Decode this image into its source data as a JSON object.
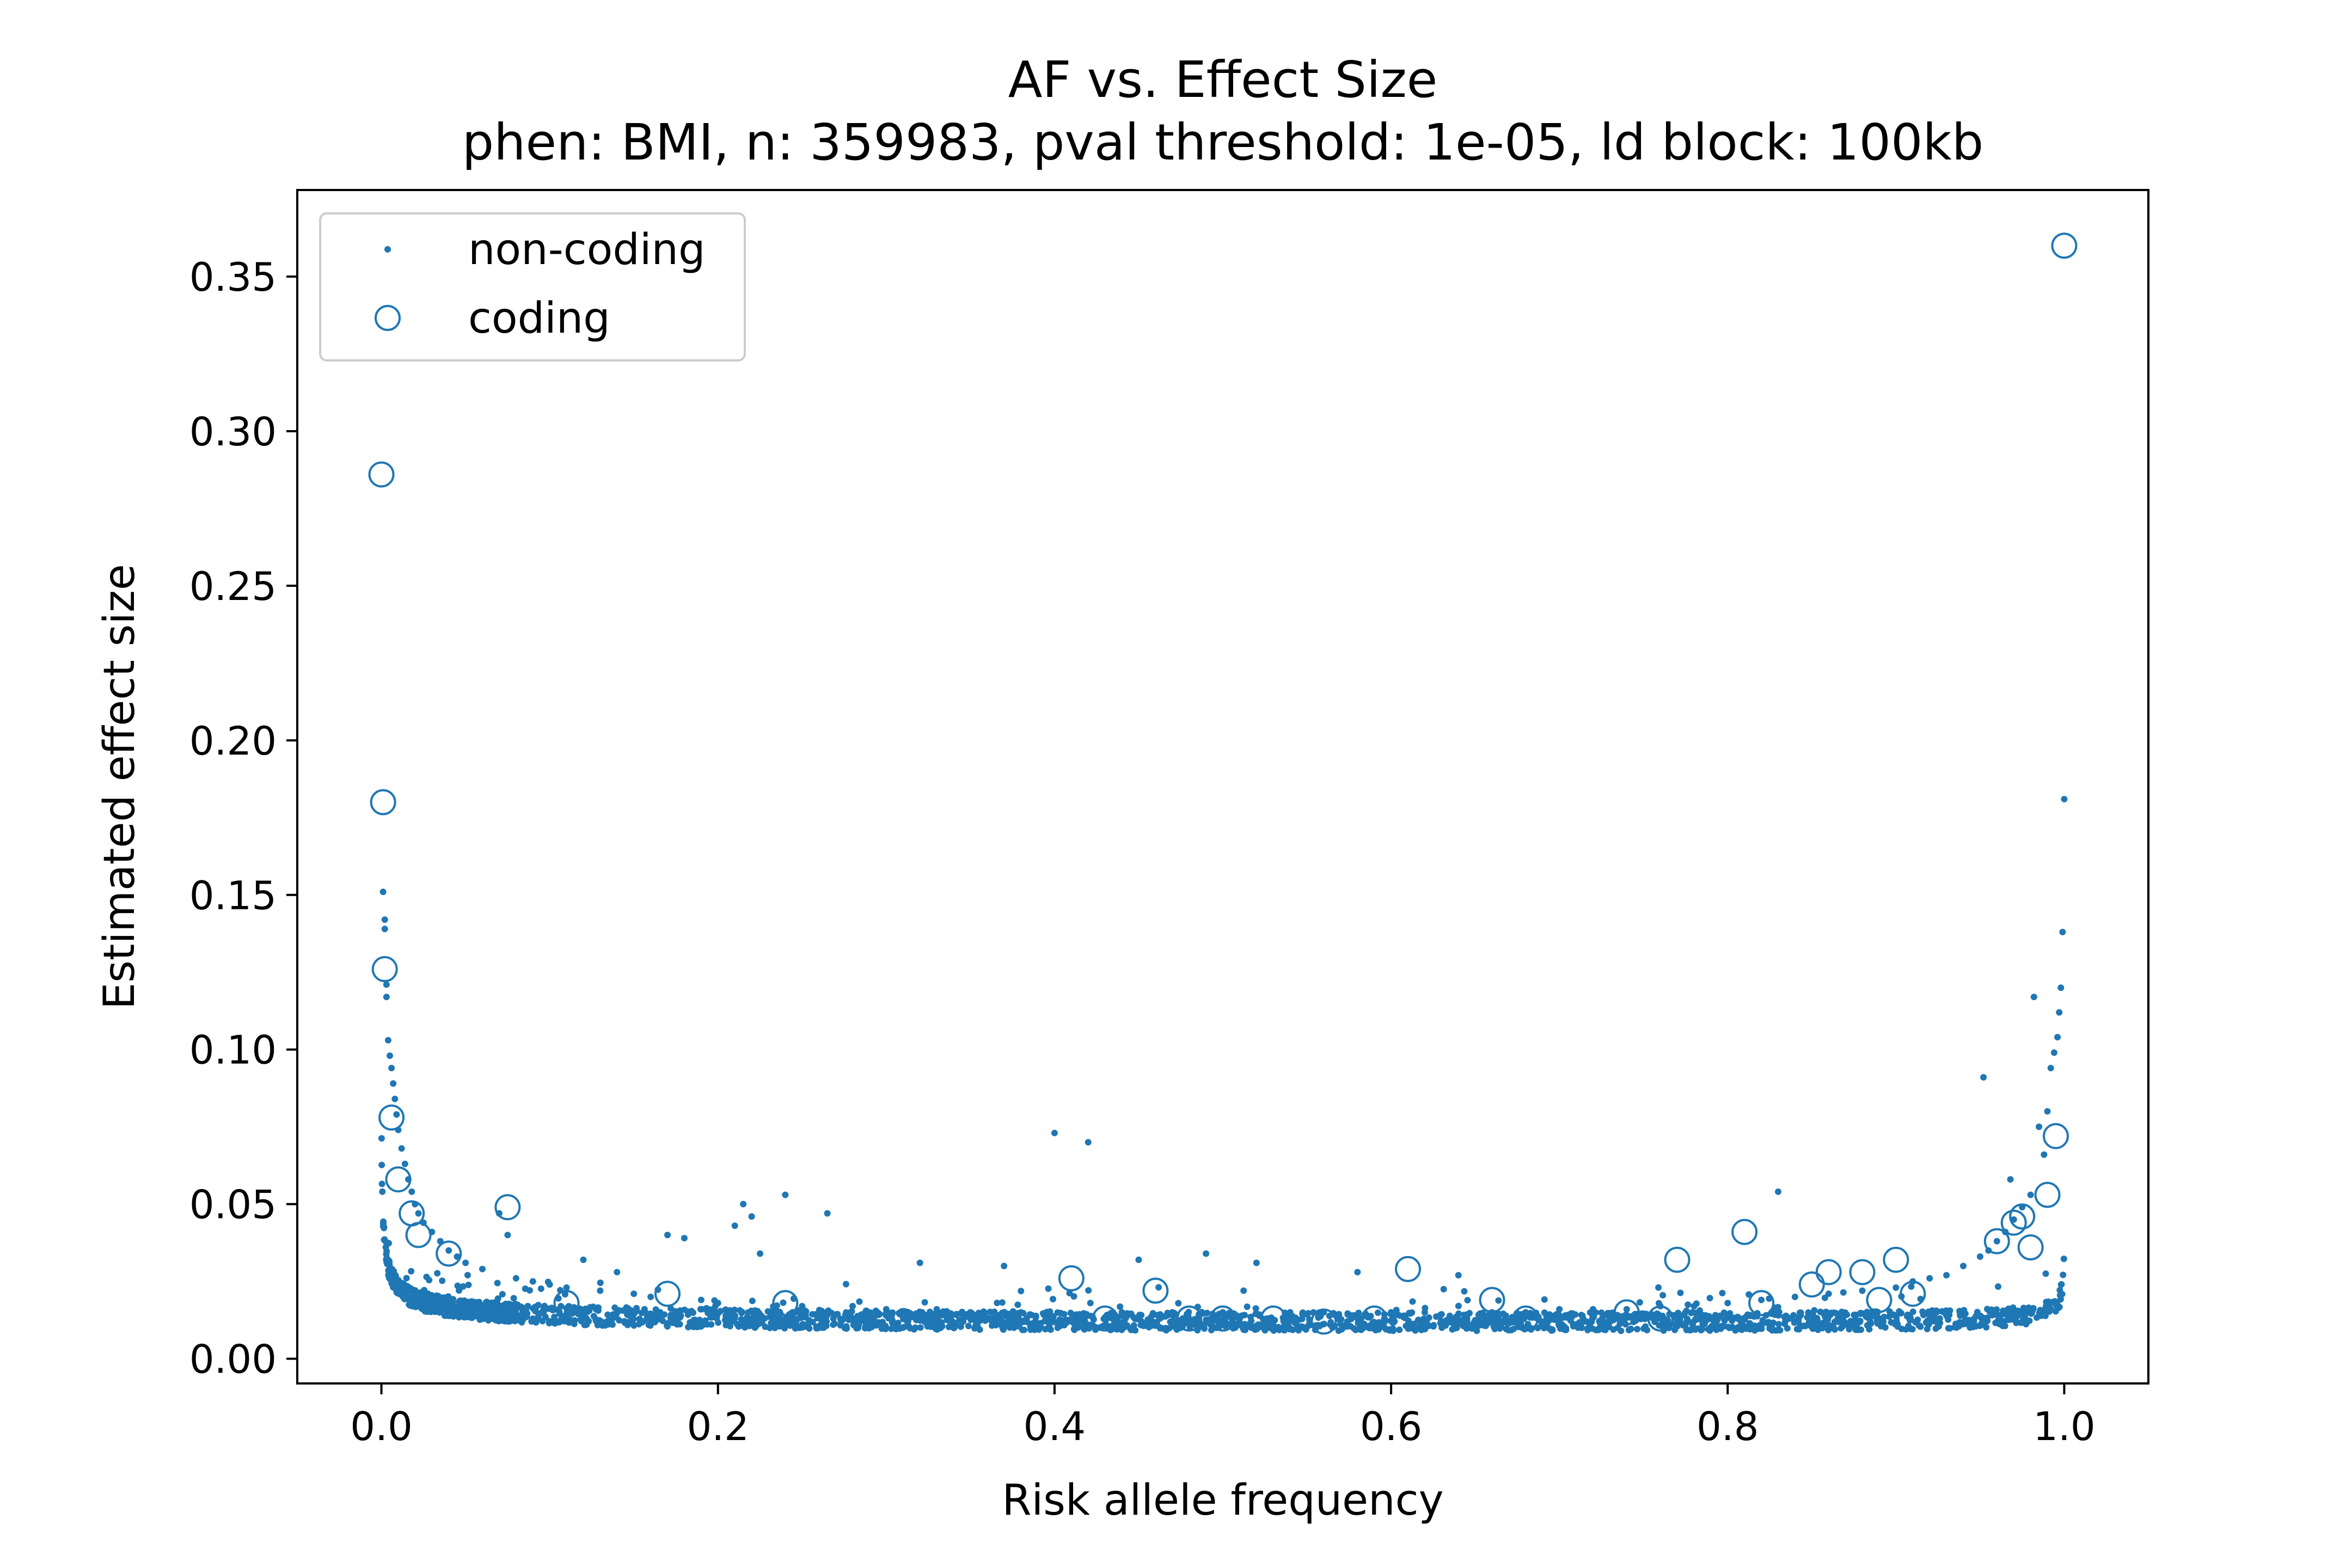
{
  "chart_data": {
    "type": "scatter",
    "title": "AF vs. Effect Size",
    "subtitle": "phen: BMI, n: 359983, pval threshold: 1e-05, ld block: 100kb",
    "xlabel": "Risk allele frequency",
    "ylabel": "Estimated effect size",
    "xlim": [
      -0.05,
      1.05
    ],
    "ylim": [
      -0.008,
      0.378
    ],
    "xticks": [
      0.0,
      0.2,
      0.4,
      0.6,
      0.8,
      1.0
    ],
    "xtick_labels": [
      "0.0",
      "0.2",
      "0.4",
      "0.6",
      "0.8",
      "1.0"
    ],
    "yticks": [
      0.0,
      0.05,
      0.1,
      0.15,
      0.2,
      0.25,
      0.3,
      0.35
    ],
    "ytick_labels": [
      "0.00",
      "0.05",
      "0.10",
      "0.15",
      "0.20",
      "0.25",
      "0.30",
      "0.35"
    ],
    "grid": false,
    "legend_position": "top-left",
    "colors": {
      "series": "#1f77b4",
      "axes": "#000000",
      "background": "#ffffff"
    },
    "series": [
      {
        "name": "non-coding",
        "marker": "dot",
        "points": [
          [
            0.001,
            0.151
          ],
          [
            0.002,
            0.142
          ],
          [
            0.002,
            0.139
          ],
          [
            0.003,
            0.121
          ],
          [
            0.003,
            0.117
          ],
          [
            0.004,
            0.103
          ],
          [
            0.005,
            0.098
          ],
          [
            0.006,
            0.094
          ],
          [
            0.007,
            0.089
          ],
          [
            0.008,
            0.084
          ],
          [
            0.009,
            0.079
          ],
          [
            0.01,
            0.074
          ],
          [
            0.012,
            0.068
          ],
          [
            0.014,
            0.063
          ],
          [
            0.016,
            0.058
          ],
          [
            0.018,
            0.054
          ],
          [
            0.02,
            0.05
          ],
          [
            0.022,
            0.047
          ],
          [
            0.025,
            0.044
          ],
          [
            0.03,
            0.041
          ],
          [
            0.035,
            0.038
          ],
          [
            0.04,
            0.035
          ],
          [
            0.045,
            0.033
          ],
          [
            0.05,
            0.031
          ],
          [
            0.06,
            0.029
          ],
          [
            0.07,
            0.047
          ],
          [
            0.075,
            0.04
          ],
          [
            0.08,
            0.026
          ],
          [
            0.09,
            0.025
          ],
          [
            0.1,
            0.024
          ],
          [
            0.11,
            0.023
          ],
          [
            0.12,
            0.032
          ],
          [
            0.13,
            0.022
          ],
          [
            0.14,
            0.028
          ],
          [
            0.15,
            0.021
          ],
          [
            0.16,
            0.02
          ],
          [
            0.17,
            0.04
          ],
          [
            0.18,
            0.039
          ],
          [
            0.19,
            0.019
          ],
          [
            0.2,
            0.018
          ],
          [
            0.21,
            0.043
          ],
          [
            0.215,
            0.05
          ],
          [
            0.22,
            0.046
          ],
          [
            0.225,
            0.034
          ],
          [
            0.24,
            0.053
          ],
          [
            0.25,
            0.017
          ],
          [
            0.265,
            0.047
          ],
          [
            0.28,
            0.017
          ],
          [
            0.3,
            0.016
          ],
          [
            0.32,
            0.031
          ],
          [
            0.33,
            0.016
          ],
          [
            0.35,
            0.015
          ],
          [
            0.37,
            0.03
          ],
          [
            0.38,
            0.015
          ],
          [
            0.4,
            0.073
          ],
          [
            0.42,
            0.07
          ],
          [
            0.44,
            0.015
          ],
          [
            0.45,
            0.032
          ],
          [
            0.47,
            0.015
          ],
          [
            0.49,
            0.034
          ],
          [
            0.5,
            0.015
          ],
          [
            0.52,
            0.031
          ],
          [
            0.54,
            0.015
          ],
          [
            0.56,
            0.015
          ],
          [
            0.58,
            0.028
          ],
          [
            0.6,
            0.015
          ],
          [
            0.62,
            0.015
          ],
          [
            0.64,
            0.027
          ],
          [
            0.66,
            0.015
          ],
          [
            0.68,
            0.015
          ],
          [
            0.7,
            0.016
          ],
          [
            0.72,
            0.016
          ],
          [
            0.74,
            0.016
          ],
          [
            0.76,
            0.017
          ],
          [
            0.78,
            0.017
          ],
          [
            0.8,
            0.018
          ],
          [
            0.82,
            0.019
          ],
          [
            0.83,
            0.054
          ],
          [
            0.84,
            0.02
          ],
          [
            0.86,
            0.021
          ],
          [
            0.88,
            0.022
          ],
          [
            0.9,
            0.023
          ],
          [
            0.91,
            0.025
          ],
          [
            0.92,
            0.026
          ],
          [
            0.93,
            0.027
          ],
          [
            0.94,
            0.03
          ],
          [
            0.95,
            0.033
          ],
          [
            0.952,
            0.091
          ],
          [
            0.955,
            0.035
          ],
          [
            0.96,
            0.038
          ],
          [
            0.965,
            0.041
          ],
          [
            0.968,
            0.058
          ],
          [
            0.97,
            0.045
          ],
          [
            0.975,
            0.049
          ],
          [
            0.98,
            0.053
          ],
          [
            0.982,
            0.117
          ],
          [
            0.985,
            0.075
          ],
          [
            0.988,
            0.066
          ],
          [
            0.99,
            0.08
          ],
          [
            0.992,
            0.094
          ],
          [
            0.994,
            0.099
          ],
          [
            0.996,
            0.104
          ],
          [
            0.997,
            0.112
          ],
          [
            0.998,
            0.12
          ],
          [
            0.999,
            0.138
          ],
          [
            1.0,
            0.181
          ]
        ]
      },
      {
        "name": "coding",
        "marker": "open-circle",
        "points": [
          [
            0.0,
            0.286
          ],
          [
            0.001,
            0.18
          ],
          [
            0.002,
            0.126
          ],
          [
            0.006,
            0.078
          ],
          [
            0.01,
            0.058
          ],
          [
            0.018,
            0.047
          ],
          [
            0.022,
            0.04
          ],
          [
            0.04,
            0.034
          ],
          [
            0.075,
            0.049
          ],
          [
            0.11,
            0.018
          ],
          [
            0.17,
            0.021
          ],
          [
            0.24,
            0.018
          ],
          [
            0.41,
            0.026
          ],
          [
            0.43,
            0.013
          ],
          [
            0.46,
            0.022
          ],
          [
            0.48,
            0.013
          ],
          [
            0.5,
            0.013
          ],
          [
            0.53,
            0.013
          ],
          [
            0.56,
            0.012
          ],
          [
            0.59,
            0.013
          ],
          [
            0.61,
            0.029
          ],
          [
            0.66,
            0.019
          ],
          [
            0.68,
            0.013
          ],
          [
            0.74,
            0.015
          ],
          [
            0.76,
            0.013
          ],
          [
            0.77,
            0.032
          ],
          [
            0.81,
            0.041
          ],
          [
            0.82,
            0.018
          ],
          [
            0.85,
            0.024
          ],
          [
            0.86,
            0.028
          ],
          [
            0.88,
            0.028
          ],
          [
            0.89,
            0.019
          ],
          [
            0.9,
            0.032
          ],
          [
            0.91,
            0.021
          ],
          [
            0.96,
            0.038
          ],
          [
            0.97,
            0.044
          ],
          [
            0.975,
            0.046
          ],
          [
            0.98,
            0.036
          ],
          [
            0.99,
            0.053
          ],
          [
            0.995,
            0.072
          ],
          [
            1.0,
            0.36
          ]
        ]
      }
    ]
  }
}
